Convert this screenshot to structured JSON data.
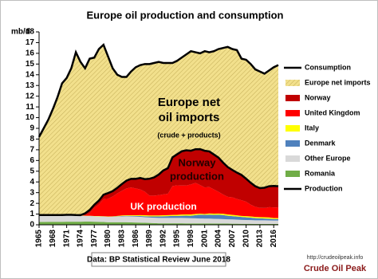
{
  "chart_data": {
    "type": "area",
    "title": "Europe oil production  and consumption",
    "y_label": "mb/d",
    "x": [
      1965,
      1966,
      1967,
      1968,
      1969,
      1970,
      1971,
      1972,
      1973,
      1974,
      1975,
      1976,
      1977,
      1978,
      1979,
      1980,
      1981,
      1982,
      1983,
      1984,
      1985,
      1986,
      1987,
      1988,
      1989,
      1990,
      1991,
      1992,
      1993,
      1994,
      1995,
      1996,
      1997,
      1998,
      1999,
      2000,
      2001,
      2002,
      2003,
      2004,
      2005,
      2006,
      2007,
      2008,
      2009,
      2010,
      2011,
      2012,
      2013,
      2014,
      2015,
      2016,
      2017
    ],
    "xlim": [
      1965,
      2017
    ],
    "xticks": [
      1965,
      1968,
      1971,
      1974,
      1977,
      1980,
      1983,
      1986,
      1989,
      1992,
      1995,
      1998,
      2001,
      2004,
      2007,
      2010,
      2013,
      2016
    ],
    "ylim": [
      0,
      18
    ],
    "yticks": [
      0,
      1,
      2,
      3,
      4,
      5,
      6,
      7,
      8,
      9,
      10,
      11,
      12,
      13,
      14,
      15,
      16,
      17,
      18
    ],
    "series": [
      {
        "name": "Consumption",
        "kind": "line",
        "color": "#000000",
        "values": [
          8.2,
          9.0,
          9.8,
          10.8,
          11.9,
          13.2,
          13.7,
          14.6,
          16.1,
          15.2,
          14.6,
          15.5,
          15.6,
          16.4,
          16.8,
          15.7,
          14.6,
          14.0,
          13.8,
          13.8,
          14.3,
          14.7,
          14.9,
          15.0,
          15.0,
          15.1,
          15.2,
          15.1,
          15.1,
          15.1,
          15.3,
          15.6,
          15.9,
          16.2,
          16.1,
          16.0,
          16.2,
          16.1,
          16.2,
          16.4,
          16.5,
          16.6,
          16.4,
          16.3,
          15.5,
          15.4,
          15.0,
          14.5,
          14.3,
          14.1,
          14.4,
          14.7,
          14.9
        ]
      },
      {
        "name": "Europe net imports",
        "kind": "stacked",
        "color": "#f2e08c",
        "hatched": true,
        "values": [
          7.29,
          8.09,
          8.89,
          9.89,
          10.99,
          12.29,
          12.77,
          13.67,
          15.19,
          14.3,
          13.53,
          14.12,
          13.73,
          14.14,
          14.0,
          12.74,
          11.46,
          10.55,
          10.0,
          9.68,
          10.01,
          10.41,
          10.53,
          10.74,
          10.7,
          10.68,
          10.51,
          10.03,
          9.82,
          8.8,
          8.72,
          8.74,
          8.95,
          9.29,
          9.05,
          8.94,
          9.29,
          9.25,
          9.64,
          10.13,
          10.7,
          11.21,
          11.28,
          11.43,
          10.85,
          11.1,
          11.08,
          10.9,
          10.88,
          10.64,
          10.8,
          11.07,
          11.3
        ]
      },
      {
        "name": "Norway",
        "kind": "stacked",
        "color": "#c00000",
        "values": [
          0,
          0,
          0,
          0,
          0,
          0,
          0.01,
          0.03,
          0.03,
          0.04,
          0.19,
          0.28,
          0.28,
          0.36,
          0.4,
          0.53,
          0.5,
          0.52,
          0.63,
          0.73,
          0.8,
          0.9,
          1.07,
          1.17,
          1.58,
          1.7,
          1.92,
          2.23,
          2.38,
          2.68,
          2.9,
          3.2,
          3.28,
          3.14,
          3.14,
          3.35,
          3.42,
          3.33,
          3.26,
          3.19,
          2.97,
          2.78,
          2.55,
          2.46,
          2.35,
          2.14,
          2.04,
          1.92,
          1.84,
          1.89,
          1.95,
          2.0,
          1.97
        ]
      },
      {
        "name": "United Kingdom",
        "kind": "stacked",
        "color": "#ff0000",
        "values": [
          0,
          0,
          0,
          0,
          0,
          0,
          0,
          0,
          0,
          0,
          0.03,
          0.25,
          0.77,
          1.08,
          1.6,
          1.65,
          1.85,
          2.1,
          2.3,
          2.5,
          2.6,
          2.5,
          2.4,
          2.2,
          1.85,
          1.85,
          1.9,
          1.95,
          2.0,
          2.7,
          2.75,
          2.7,
          2.7,
          2.8,
          2.9,
          2.67,
          2.48,
          2.46,
          2.26,
          2.03,
          1.8,
          1.64,
          1.64,
          1.53,
          1.47,
          1.35,
          1.1,
          0.95,
          0.86,
          0.86,
          0.96,
          1.0,
          1.0
        ]
      },
      {
        "name": "Italy",
        "kind": "stacked",
        "color": "#ffff00",
        "values": [
          0.04,
          0.04,
          0.03,
          0.03,
          0.03,
          0.03,
          0.03,
          0.02,
          0.02,
          0.02,
          0.02,
          0.02,
          0.02,
          0.03,
          0.03,
          0.03,
          0.03,
          0.04,
          0.05,
          0.05,
          0.05,
          0.06,
          0.08,
          0.09,
          0.09,
          0.09,
          0.09,
          0.09,
          0.09,
          0.09,
          0.1,
          0.11,
          0.11,
          0.12,
          0.11,
          0.09,
          0.08,
          0.11,
          0.11,
          0.11,
          0.12,
          0.12,
          0.12,
          0.11,
          0.1,
          0.11,
          0.11,
          0.11,
          0.12,
          0.12,
          0.12,
          0.09,
          0.09
        ]
      },
      {
        "name": "Denmark",
        "kind": "stacked",
        "color": "#4f81bd",
        "values": [
          0,
          0,
          0,
          0,
          0,
          0,
          0,
          0.01,
          0.01,
          0.01,
          0.01,
          0.01,
          0.01,
          0.01,
          0.01,
          0.01,
          0.02,
          0.03,
          0.04,
          0.05,
          0.06,
          0.07,
          0.08,
          0.09,
          0.1,
          0.12,
          0.14,
          0.16,
          0.17,
          0.19,
          0.19,
          0.21,
          0.23,
          0.24,
          0.3,
          0.36,
          0.35,
          0.37,
          0.37,
          0.39,
          0.38,
          0.34,
          0.31,
          0.29,
          0.27,
          0.25,
          0.23,
          0.2,
          0.18,
          0.17,
          0.16,
          0.14,
          0.14
        ]
      },
      {
        "name": "Other Europe",
        "kind": "stacked",
        "color": "#d9d9d9",
        "values": [
          0.6,
          0.6,
          0.6,
          0.6,
          0.6,
          0.6,
          0.6,
          0.58,
          0.56,
          0.54,
          0.52,
          0.52,
          0.5,
          0.5,
          0.5,
          0.5,
          0.5,
          0.52,
          0.54,
          0.55,
          0.56,
          0.55,
          0.54,
          0.52,
          0.5,
          0.5,
          0.5,
          0.5,
          0.5,
          0.5,
          0.5,
          0.5,
          0.5,
          0.48,
          0.47,
          0.46,
          0.45,
          0.45,
          0.44,
          0.43,
          0.42,
          0.4,
          0.4,
          0.38,
          0.37,
          0.36,
          0.35,
          0.34,
          0.34,
          0.34,
          0.33,
          0.32,
          0.32
        ]
      },
      {
        "name": "Romania",
        "kind": "stacked",
        "color": "#70ad47",
        "values": [
          0.27,
          0.27,
          0.28,
          0.28,
          0.28,
          0.28,
          0.29,
          0.29,
          0.29,
          0.29,
          0.3,
          0.3,
          0.29,
          0.28,
          0.26,
          0.24,
          0.24,
          0.24,
          0.24,
          0.24,
          0.22,
          0.21,
          0.2,
          0.19,
          0.18,
          0.16,
          0.14,
          0.14,
          0.14,
          0.14,
          0.14,
          0.14,
          0.13,
          0.13,
          0.13,
          0.13,
          0.13,
          0.13,
          0.12,
          0.12,
          0.11,
          0.11,
          0.1,
          0.1,
          0.09,
          0.09,
          0.09,
          0.08,
          0.08,
          0.08,
          0.08,
          0.08,
          0.08
        ]
      },
      {
        "name": "Production",
        "kind": "line",
        "color": "#000000",
        "values": [
          0.91,
          0.91,
          0.91,
          0.91,
          0.91,
          0.91,
          0.93,
          0.93,
          0.91,
          0.9,
          1.07,
          1.38,
          1.87,
          2.26,
          2.8,
          2.96,
          3.14,
          3.45,
          3.8,
          4.12,
          4.29,
          4.29,
          4.37,
          4.26,
          4.3,
          4.42,
          4.69,
          5.07,
          5.28,
          6.3,
          6.58,
          6.86,
          6.95,
          6.91,
          7.05,
          7.06,
          6.91,
          6.85,
          6.56,
          6.27,
          5.8,
          5.39,
          5.12,
          4.87,
          4.65,
          4.3,
          3.92,
          3.6,
          3.42,
          3.46,
          3.6,
          3.63,
          3.6
        ]
      }
    ],
    "annotations": [
      "Europe net",
      "oil imports",
      "(crude + products)",
      "Norway",
      "production",
      "UK production"
    ],
    "source": "Data: BP Statistical Review June 2018",
    "logo": {
      "url": "http://crudeoilpeak.info",
      "name": "Crude Oil Peak"
    }
  }
}
